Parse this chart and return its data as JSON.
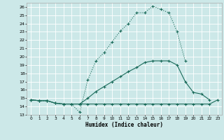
{
  "xlabel": "Humidex (Indice chaleur)",
  "bg_color": "#cce8e8",
  "grid_color": "#b8d8d8",
  "line_color": "#1a6b5a",
  "xlim": [
    -0.5,
    23.5
  ],
  "ylim": [
    13,
    26.5
  ],
  "ytick_vals": [
    13,
    14,
    15,
    16,
    17,
    18,
    19,
    20,
    21,
    22,
    23,
    24,
    25,
    26
  ],
  "xtick_vals": [
    0,
    1,
    2,
    3,
    4,
    5,
    6,
    7,
    8,
    9,
    10,
    11,
    12,
    13,
    14,
    15,
    16,
    17,
    18,
    19,
    20,
    21,
    22,
    23
  ],
  "line1_x": [
    0,
    1,
    2,
    3,
    4,
    5,
    6,
    7,
    8,
    9,
    10,
    11,
    12,
    13,
    14,
    15,
    16,
    17,
    18,
    19
  ],
  "line1_y": [
    14.8,
    14.7,
    14.7,
    14.4,
    14.3,
    14.3,
    13.3,
    17.2,
    19.5,
    20.5,
    21.8,
    23.1,
    24.0,
    25.3,
    25.3,
    26.1,
    25.7,
    25.3,
    23.0,
    19.5
  ],
  "line2_x": [
    0,
    1,
    2,
    3,
    4,
    5,
    6,
    7,
    8,
    9,
    10,
    11,
    12,
    13,
    14,
    15,
    16,
    17,
    18,
    19,
    20,
    21,
    22,
    23
  ],
  "line2_y": [
    14.8,
    14.7,
    14.7,
    14.4,
    14.3,
    14.3,
    14.3,
    14.3,
    14.3,
    14.3,
    14.3,
    14.3,
    14.3,
    14.3,
    14.3,
    14.3,
    14.3,
    14.3,
    14.3,
    14.3,
    14.3,
    14.3,
    14.3,
    14.8
  ],
  "line3_x": [
    0,
    1,
    2,
    3,
    4,
    5,
    6,
    7,
    8,
    9,
    10,
    11,
    12,
    13,
    14,
    15,
    16,
    17,
    18,
    19,
    20,
    21,
    22
  ],
  "line3_y": [
    14.8,
    14.7,
    14.7,
    14.4,
    14.3,
    14.3,
    14.3,
    15.0,
    15.8,
    16.4,
    17.0,
    17.6,
    18.2,
    18.7,
    19.3,
    19.5,
    19.5,
    19.5,
    19.0,
    17.0,
    15.7,
    15.5,
    14.8
  ]
}
